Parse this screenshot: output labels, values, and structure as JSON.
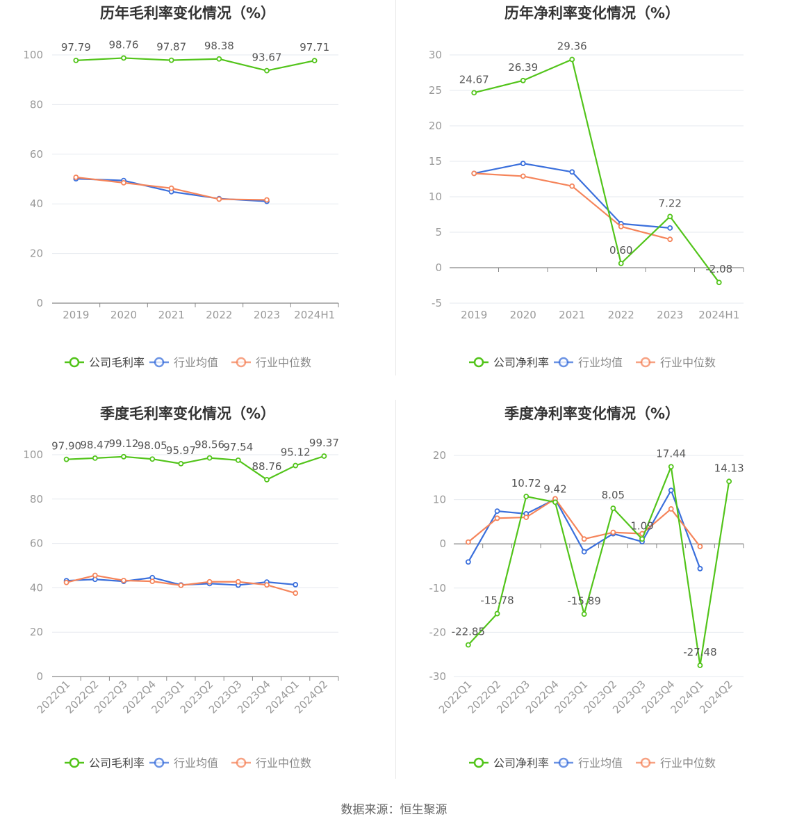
{
  "source_text": "数据来源：恒生聚源",
  "colors": {
    "company": "#52c41a",
    "avg": "#3a6fdc",
    "median": "#f5845a",
    "grid": "#e6e9ef",
    "axis": "#666666",
    "text": "#999999",
    "label": "#555555",
    "title": "#333333"
  },
  "chart_data": [
    {
      "type": "line",
      "title": "历年毛利率变化情况（%）",
      "categories": [
        "2019",
        "2020",
        "2021",
        "2022",
        "2023",
        "2024H1"
      ],
      "ylim": [
        0,
        100
      ],
      "yticks": [
        0,
        20,
        40,
        60,
        80,
        100
      ],
      "series": [
        {
          "name": "公司毛利率",
          "key": "company",
          "values": [
            97.79,
            98.76,
            97.87,
            98.38,
            93.67,
            97.71
          ],
          "labels": [
            "97.79",
            "98.76",
            "97.87",
            "98.38",
            "93.67",
            "97.71"
          ]
        },
        {
          "name": "行业均值",
          "key": "avg",
          "values": [
            50.1,
            49.4,
            44.9,
            42.1,
            41.0,
            null
          ]
        },
        {
          "name": "行业中位数",
          "key": "median",
          "values": [
            50.7,
            48.5,
            46.3,
            41.9,
            41.6,
            null
          ]
        }
      ],
      "legend": [
        "公司毛利率",
        "行业均值",
        "行业中位数"
      ]
    },
    {
      "type": "line",
      "title": "历年净利率变化情况（%）",
      "categories": [
        "2019",
        "2020",
        "2021",
        "2022",
        "2023",
        "2024H1"
      ],
      "ylim": [
        -5,
        30
      ],
      "yticks": [
        -5,
        0,
        5,
        10,
        15,
        20,
        25,
        30
      ],
      "series": [
        {
          "name": "公司净利率",
          "key": "company",
          "values": [
            24.67,
            26.39,
            29.36,
            0.6,
            7.22,
            -2.08
          ],
          "labels": [
            "24.67",
            "26.39",
            "29.36",
            "0.60",
            "7.22",
            "-2.08"
          ]
        },
        {
          "name": "行业均值",
          "key": "avg",
          "values": [
            13.3,
            14.7,
            13.5,
            6.2,
            5.6,
            null
          ]
        },
        {
          "name": "行业中位数",
          "key": "median",
          "values": [
            13.3,
            12.9,
            11.5,
            5.8,
            4.0,
            null
          ]
        }
      ],
      "legend": [
        "公司净利率",
        "行业均值",
        "行业中位数"
      ]
    },
    {
      "type": "line",
      "title": "季度毛利率变化情况（%）",
      "categories": [
        "2022Q1",
        "2022Q2",
        "2022Q3",
        "2022Q4",
        "2023Q1",
        "2023Q2",
        "2023Q3",
        "2023Q4",
        "2024Q1",
        "2024Q2"
      ],
      "ylim": [
        0,
        100
      ],
      "yticks": [
        0,
        20,
        40,
        60,
        80,
        100
      ],
      "series": [
        {
          "name": "公司毛利率",
          "key": "company",
          "values": [
            97.9,
            98.47,
            99.12,
            98.05,
            95.97,
            98.56,
            97.54,
            88.76,
            95.12,
            99.37
          ],
          "labels": [
            "97.90",
            "98.47",
            "99.12",
            "98.05",
            "95.97",
            "98.56",
            "97.54",
            "88.76",
            "95.12",
            "99.37"
          ]
        },
        {
          "name": "行业均值",
          "key": "avg",
          "values": [
            43.2,
            43.8,
            42.9,
            44.6,
            41.3,
            41.9,
            41.2,
            42.6,
            41.4,
            null
          ]
        },
        {
          "name": "行业中位数",
          "key": "median",
          "values": [
            42.4,
            45.6,
            43.3,
            42.9,
            41.1,
            42.7,
            42.7,
            41.3,
            37.6,
            null
          ]
        }
      ],
      "legend": [
        "公司毛利率",
        "行业均值",
        "行业中位数"
      ]
    },
    {
      "type": "line",
      "title": "季度净利率变化情况（%）",
      "categories": [
        "2022Q1",
        "2022Q2",
        "2022Q3",
        "2022Q4",
        "2023Q1",
        "2023Q2",
        "2023Q3",
        "2023Q4",
        "2024Q1",
        "2024Q2"
      ],
      "ylim": [
        -30,
        20
      ],
      "yticks": [
        -30,
        -20,
        -10,
        0,
        10,
        20
      ],
      "series": [
        {
          "name": "公司净利率",
          "key": "company",
          "values": [
            -22.85,
            -15.78,
            10.72,
            9.42,
            -15.89,
            8.05,
            1.09,
            17.44,
            -27.48,
            14.13
          ],
          "labels": [
            "-22.85",
            "-15.78",
            "10.72",
            "9.42",
            "-15.89",
            "8.05",
            "1.09",
            "17.44",
            "-27.48",
            "14.13"
          ]
        },
        {
          "name": "行业均值",
          "key": "avg",
          "values": [
            -4.1,
            7.4,
            6.8,
            10.1,
            -1.8,
            2.3,
            0.5,
            12.1,
            -5.6,
            null
          ]
        },
        {
          "name": "行业中位数",
          "key": "median",
          "values": [
            0.4,
            5.8,
            6.0,
            10.2,
            1.1,
            2.6,
            2.3,
            7.9,
            -0.6,
            null
          ]
        }
      ],
      "legend": [
        "公司净利率",
        "行业均值",
        "行业中位数"
      ]
    }
  ]
}
